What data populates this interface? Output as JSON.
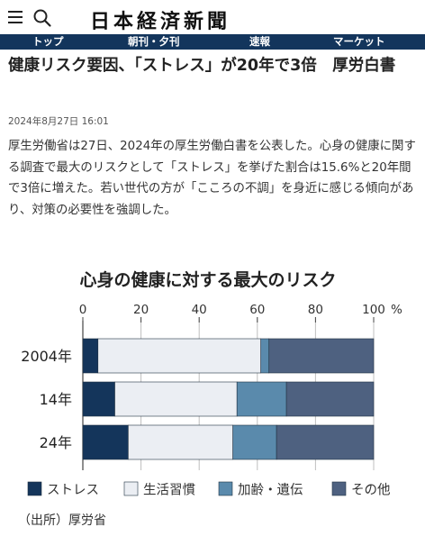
{
  "header": {
    "logo": "日本経済新聞",
    "menu_icon": "hamburger-menu-icon",
    "search_icon": "search-icon"
  },
  "nav": {
    "items": [
      {
        "label": "トップ"
      },
      {
        "label": "朝刊・夕刊"
      },
      {
        "label": "速報"
      },
      {
        "label": "マーケット"
      }
    ]
  },
  "article": {
    "headline": "健康リスク要因、「ストレス」が20年で3倍　厚労白書",
    "timestamp": "2024年8月27日 16:01",
    "body": "厚生労働省は27日、2024年の厚生労働白書を公表した。心身の健康に関する調査で最大のリスクとして「ストレス」を挙げた割合は15.6%と20年間で3倍に増えた。若い世代の方が「こころの不調」を身近に感じる傾向があり、対策の必要性を強調した。"
  },
  "chart_data": {
    "type": "bar",
    "stacked": true,
    "orientation": "horizontal",
    "title": "心身の健康に対する最大のリスク",
    "categories": [
      "2004年",
      "14年",
      "24年"
    ],
    "x_ticks": [
      "0",
      "20",
      "40",
      "60",
      "80",
      "100"
    ],
    "x_unit": "%",
    "xlim": [
      0,
      100
    ],
    "series": [
      {
        "name": "ストレス",
        "color": "#14355b",
        "values": [
          5.2,
          11,
          15.6
        ]
      },
      {
        "name": "生活習慣",
        "color": "#ebeef3",
        "values": [
          56,
          42,
          36
        ]
      },
      {
        "name": "加齢・遺伝",
        "color": "#5a8aac",
        "values": [
          2.8,
          17,
          15
        ]
      },
      {
        "name": "その他",
        "color": "#4e6180",
        "values": [
          36,
          30,
          33.4
        ]
      }
    ],
    "source": "（出所）厚労省"
  }
}
